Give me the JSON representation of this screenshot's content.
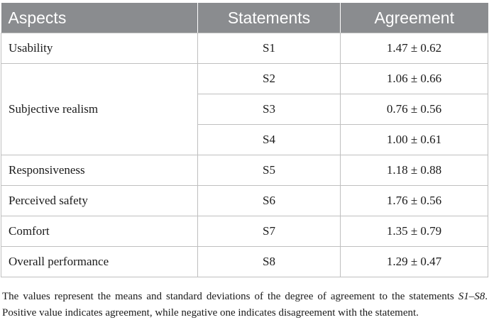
{
  "table": {
    "headers": [
      "Aspects",
      "Statements",
      "Agreement"
    ],
    "rows": [
      {
        "aspect": "Usability",
        "statement": "S1",
        "agreement": "1.47 ± 0.62"
      },
      {
        "aspect": "Subjective realism",
        "statement": "S2",
        "agreement": "1.06 ± 0.66"
      },
      {
        "aspect": "",
        "statement": "S3",
        "agreement": "0.76 ± 0.56"
      },
      {
        "aspect": "",
        "statement": "S4",
        "agreement": "1.00 ± 0.61"
      },
      {
        "aspect": "Responsiveness",
        "statement": "S5",
        "agreement": "1.18 ± 0.88"
      },
      {
        "aspect": "Perceived safety",
        "statement": "S6",
        "agreement": "1.76 ± 0.56"
      },
      {
        "aspect": "Comfort",
        "statement": "S7",
        "agreement": "1.35 ± 0.79"
      },
      {
        "aspect": "Overall performance",
        "statement": "S8",
        "agreement": "1.29 ± 0.47"
      }
    ]
  },
  "note": {
    "part1": "The values represent the means and standard deviations of the degree of agreement to the statements ",
    "range": "S1–S8",
    "part2": ". Positive value indicates agreement, while negative one indicates disagreement with the statement."
  }
}
